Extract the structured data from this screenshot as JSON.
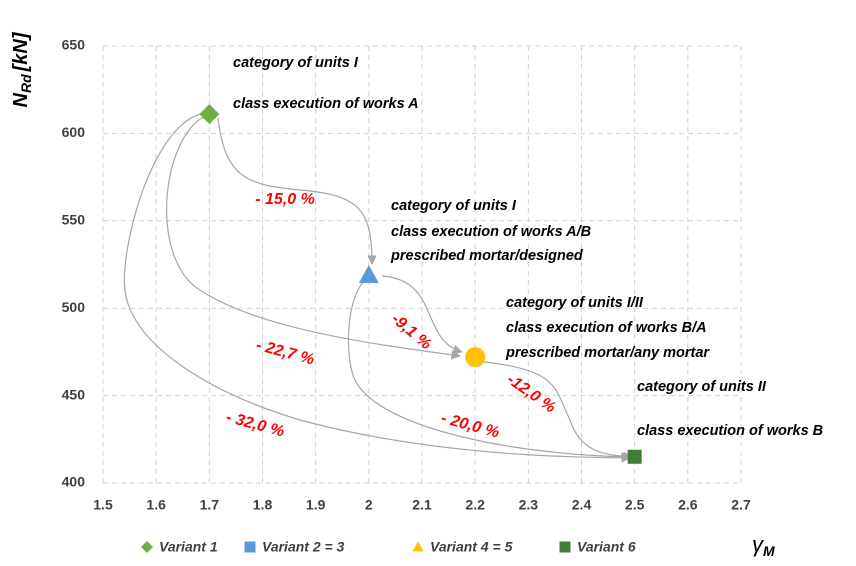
{
  "chart_data": {
    "type": "scatter",
    "ylabel": "N",
    "ylabel_sub": "Rd",
    "ylabel_unit": "[kN]",
    "xlabel": "γ",
    "xlabel_sub": "M",
    "xlim": [
      1.5,
      2.7
    ],
    "xticks": [
      1.5,
      1.6,
      1.7,
      1.8,
      1.9,
      2,
      2.1,
      2.2,
      2.3,
      2.4,
      2.5,
      2.6,
      2.7
    ],
    "ylim": [
      400,
      650
    ],
    "yticks": [
      400,
      450,
      500,
      550,
      600,
      650
    ],
    "grid": true,
    "legend": "bottom",
    "series": [
      {
        "name": "Variant 1",
        "color": "#70ad47",
        "marker": "diamond",
        "x": [
          1.7
        ],
        "values": [
          611
        ]
      },
      {
        "name": "Variant 2 = 3",
        "color": "#5b9bd5",
        "marker": "triangle",
        "legend_marker": "square",
        "x": [
          2.0
        ],
        "values": [
          519
        ]
      },
      {
        "name": "Variant 4 = 5",
        "color": "#ffc000",
        "marker": "circle",
        "legend_marker": "triangle",
        "x": [
          2.2
        ],
        "values": [
          472
        ]
      },
      {
        "name": "Variant 6",
        "color": "#3f7f35",
        "marker": "square",
        "x": [
          2.5
        ],
        "values": [
          415
        ]
      }
    ],
    "annotations": [
      "category of units I",
      "class execution of works A",
      "category of units I",
      "class execution of works A/B",
      "prescribed mortar/designed",
      "category of units I/II",
      "class execution of works B/A",
      "prescribed mortar/any mortar",
      "category of units II",
      "class execution of works B"
    ],
    "arrow_labels": [
      "- 15,0 %",
      "-9,1 %",
      "-12,0 %",
      "- 22,7 %",
      "- 20,0 %",
      "- 32,0 %"
    ]
  }
}
